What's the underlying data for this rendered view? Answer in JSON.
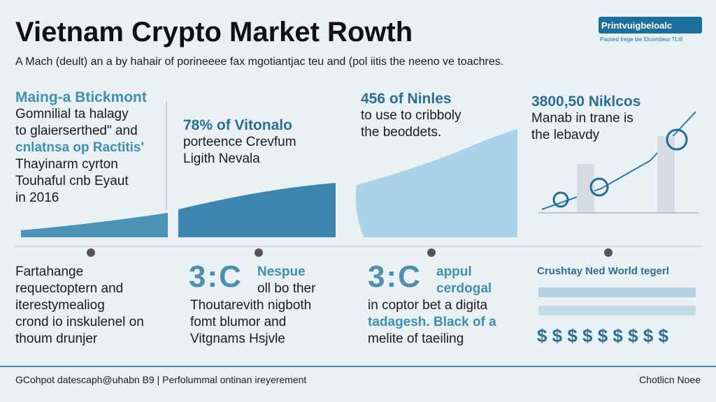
{
  "header": {
    "title": "Vietnam Crypto Market Rowth",
    "subtitle": "A Mach (deult) an a by hahair of porineeee fax mgotiantjac teu and (pol iitis the neeno ve toachres.",
    "badge": {
      "title": "Printvuigbeloalc",
      "caption": "Paosed frege bie Elcomtieur TLIII"
    }
  },
  "panels": [
    {
      "heading": "Maing-a Btickmont",
      "lines": [
        "Gomnilial ta halagy",
        "to glaierserthed\" and",
        "cnlatnsa op Ractitis'",
        "Thayinarm cyrton",
        "Touhaful cnb Eyaut",
        "in 2016"
      ]
    },
    {
      "heading": "78% of Vitonalo",
      "lines": [
        "porteence Crevfum",
        "Ligith Nevala"
      ]
    },
    {
      "heading": "456 of Ninles",
      "lines": [
        "to use to cribboly",
        "the beoddets."
      ]
    },
    {
      "heading": "3800,50 Niklcos",
      "lines": [
        "Manab in trane is",
        "the lebavdy"
      ]
    }
  ],
  "bottom": [
    {
      "lines": [
        "Fartahange",
        "requectoptern and",
        "iterestymealiog",
        "crond io inskulenel on",
        "thoum drunjer"
      ]
    },
    {
      "icon": "3:C",
      "lines": [
        "Nespue",
        "oll bo ther",
        "Thoutarevith nigboth",
        "fomt blumor and",
        "Vitgnams Hsjvle"
      ]
    },
    {
      "icon": "3:C",
      "lines": [
        "appul",
        "cerdogal",
        "in coptor bet a digita",
        "tadagesh. Black of a",
        "melite of taeiling"
      ]
    },
    {
      "heading": "Crushtay Ned World tegerl",
      "symbols": "$ $ $ $ $ $ $ $ $"
    }
  ],
  "footer": {
    "left": "GCohpot datescaph@uhabn B9 | Perfolummal ontinan ireyerement",
    "right": "Chotlicn Noee"
  }
}
